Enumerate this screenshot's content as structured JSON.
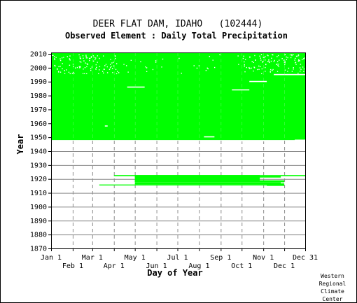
{
  "title": "DEER FLAT DAM, IDAHO   (102444)",
  "subtitle": "Observed Element : Daily Total Precipitation",
  "credit": [
    "Western",
    "Regional",
    "Climate",
    "Center"
  ],
  "colors": {
    "data": "#00ff00",
    "grid": "#8c8c8c",
    "axis": "#000000"
  },
  "chart_data": {
    "type": "heatmap",
    "xlabel": "Day of Year",
    "ylabel": "Year",
    "xlim": [
      1,
      365
    ],
    "ylim": [
      1870,
      2011
    ],
    "grid": true,
    "x_ticks_upper": [
      {
        "label": "Jan 1",
        "day": 1
      },
      {
        "label": "Mar 1",
        "day": 60
      },
      {
        "label": "May 1",
        "day": 121
      },
      {
        "label": "Jul 1",
        "day": 182
      },
      {
        "label": "Sep 1",
        "day": 244
      },
      {
        "label": "Nov 1",
        "day": 305
      },
      {
        "label": "Dec 31",
        "day": 365
      }
    ],
    "x_ticks_lower": [
      {
        "label": "Feb 1",
        "day": 32
      },
      {
        "label": "Apr 1",
        "day": 91
      },
      {
        "label": "Jun 1",
        "day": 152
      },
      {
        "label": "Aug 1",
        "day": 213
      },
      {
        "label": "Oct 1",
        "day": 274
      },
      {
        "label": "Dec 1",
        "day": 335
      }
    ],
    "y_ticks": [
      1870,
      1880,
      1890,
      1900,
      1910,
      1920,
      1930,
      1940,
      1950,
      1960,
      1970,
      1980,
      1990,
      2000,
      2010
    ],
    "observed_periods": [
      {
        "year_from": 1948,
        "year_to": 2011,
        "day_from": 1,
        "day_to": 365
      },
      {
        "year_from": 1922,
        "year_to": 1922.8,
        "day_from": 91,
        "day_to": 365
      },
      {
        "year_from": 1921,
        "year_to": 1922,
        "day_from": 121,
        "day_to": 330
      },
      {
        "year_from": 1918,
        "year_to": 1922.8,
        "day_from": 121,
        "day_to": 300
      },
      {
        "year_from": 1917.6,
        "year_to": 1919,
        "day_from": 121,
        "day_to": 335
      },
      {
        "year_from": 1916,
        "year_to": 1917.5,
        "day_from": 121,
        "day_to": 330
      },
      {
        "year_from": 1915.3,
        "year_to": 1916,
        "day_from": 70,
        "day_to": 330
      },
      {
        "year_from": 1915,
        "year_to": 1916.8,
        "day_from": 310,
        "day_to": 335
      }
    ],
    "missing_segments": [
      {
        "year": 1986.5,
        "day_from": 110,
        "day_to": 135
      },
      {
        "year": 1984.5,
        "day_from": 260,
        "day_to": 285
      },
      {
        "year": 1990.5,
        "day_from": 285,
        "day_to": 310
      },
      {
        "year": 1995.5,
        "day_from": 320,
        "day_to": 365
      },
      {
        "year": 1958.5,
        "day_from": 78,
        "day_to": 82
      },
      {
        "year": 1950.7,
        "day_from": 220,
        "day_to": 235
      },
      {
        "year": 1948.3,
        "day_from": 350,
        "day_to": 365
      },
      {
        "year": 1947.8,
        "day_from": 250,
        "day_to": 315
      }
    ]
  }
}
